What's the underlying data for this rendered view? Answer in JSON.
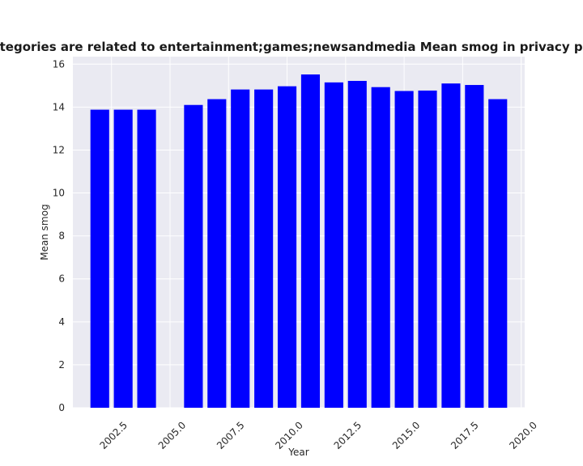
{
  "chart_data": {
    "type": "bar",
    "title": "n categories are related to entertainment;games;newsandmedia Mean smog in privacy policies",
    "xlabel": "Year",
    "ylabel": "Mean smog",
    "x": [
      2002,
      2003,
      2004,
      2006,
      2007,
      2008,
      2009,
      2010,
      2011,
      2012,
      2013,
      2014,
      2015,
      2016,
      2017,
      2018,
      2019
    ],
    "values": [
      13.88,
      13.88,
      13.88,
      14.1,
      14.37,
      14.82,
      14.82,
      14.97,
      15.52,
      15.15,
      15.22,
      14.93,
      14.75,
      14.77,
      15.1,
      15.03,
      14.37
    ],
    "xlim": [
      2000.85,
      2020.15
    ],
    "ylim": [
      0,
      16.35
    ],
    "xticks": [
      2002.5,
      2005.0,
      2007.5,
      2010.0,
      2012.5,
      2015.0,
      2017.5,
      2020.0
    ],
    "xtick_labels": [
      "2002.5",
      "2005.0",
      "2007.5",
      "2010.0",
      "2012.5",
      "2015.0",
      "2017.5",
      "2020.0"
    ],
    "yticks": [
      0,
      2,
      4,
      6,
      8,
      10,
      12,
      14,
      16
    ],
    "ytick_labels": [
      "0",
      "2",
      "4",
      "6",
      "8",
      "10",
      "12",
      "14",
      "16"
    ],
    "bar_color": "#0000ff",
    "background_color": "#eaeaf2",
    "grid": true
  }
}
